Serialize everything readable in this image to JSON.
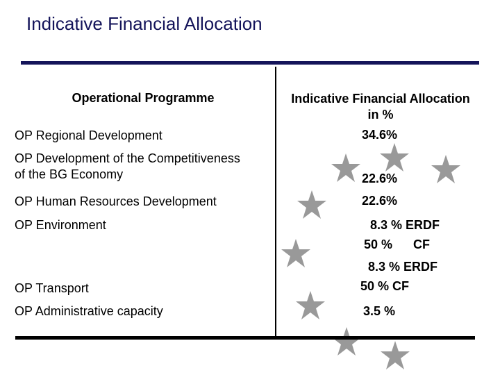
{
  "title": "Indicative Financial Allocation",
  "table": {
    "header_programme": "Operational Programme",
    "header_allocation_line1": "Indicative Financial Allocation",
    "header_allocation_line2": "in %",
    "rows": [
      {
        "programme": "OP Regional Development",
        "allocation": "34.6%"
      },
      {
        "programme": "OP Development of the Competitiveness of the BG Economy",
        "programme_line1": "OP Development of the Competitiveness",
        "programme_line2": "of the BG Economy",
        "allocation": "22.6%"
      },
      {
        "programme": "OP Human Resources Development",
        "allocation": "22.6%"
      },
      {
        "programme": "OP Environment",
        "allocation_line1": "8.3 % ERDF",
        "allocation_line2": "50 %      CF"
      },
      {
        "programme": "OP Transport",
        "allocation_line1": "8.3 % ERDF",
        "allocation_line2": "50 % CF"
      },
      {
        "programme": "OP Administrative capacity",
        "allocation": "3.5 %"
      }
    ]
  },
  "colors": {
    "title": "#14145a",
    "rule_top": "#14145a",
    "rule_bottom": "#000000",
    "stars": "#999999"
  },
  "decoration": {
    "icon": "star-icon",
    "count": 10
  }
}
